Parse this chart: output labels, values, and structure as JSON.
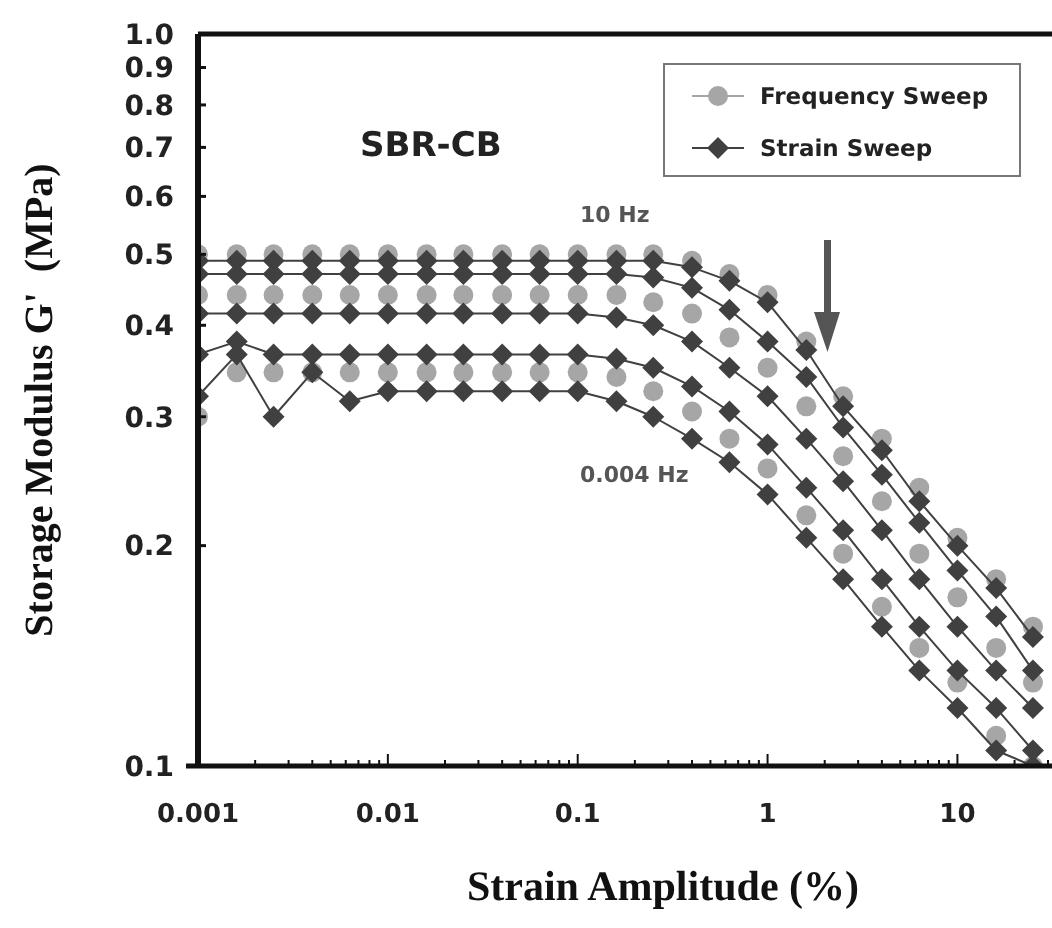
{
  "chart_data": {
    "type": "line",
    "title": "SBR-CB",
    "xlabel": "Strain Amplitude (%)",
    "ylabel": "Storage Modulus G'  (MPa)",
    "log": "xy",
    "grid": false,
    "legend": "top right",
    "xlim": [
      0.001,
      30
    ],
    "ylim": [
      0.1,
      1
    ],
    "xticks": [
      0.001,
      {
        "value": 0.002,
        "label": null
      },
      {
        "value": 0.003,
        "label": null
      },
      {
        "value": 0.004,
        "label": null
      },
      {
        "value": 0.005,
        "label": null
      },
      {
        "value": 0.006,
        "label": null
      },
      {
        "value": 0.007,
        "label": null
      },
      {
        "value": 0.008,
        "label": null
      },
      {
        "value": 0.009,
        "label": null
      },
      0.01,
      {
        "value": 0.02,
        "label": null
      },
      {
        "value": 0.03,
        "label": null
      },
      {
        "value": 0.04,
        "label": null
      },
      {
        "value": 0.05,
        "label": null
      },
      {
        "value": 0.06,
        "label": null
      },
      {
        "value": 0.07,
        "label": null
      },
      {
        "value": 0.08,
        "label": null
      },
      {
        "value": 0.09,
        "label": null
      },
      0.1,
      {
        "value": 0.2,
        "label": null
      },
      {
        "value": 0.3,
        "label": null
      },
      {
        "value": 0.4,
        "label": null
      },
      {
        "value": 0.5,
        "label": null
      },
      {
        "value": 0.6,
        "label": null
      },
      {
        "value": 0.7,
        "label": null
      },
      {
        "value": 0.8,
        "label": null
      },
      {
        "value": 0.9,
        "label": null
      },
      1,
      {
        "value": 2,
        "label": null
      },
      {
        "value": 3,
        "label": null
      },
      {
        "value": 4,
        "label": null
      },
      {
        "value": 5,
        "label": null
      },
      {
        "value": 6,
        "label": null
      },
      {
        "value": 7,
        "label": null
      },
      {
        "value": 8,
        "label": null
      },
      {
        "value": 9,
        "label": null
      },
      10,
      {
        "value": 20,
        "label": null
      },
      {
        "value": 30,
        "label": null
      }
    ],
    "yticks": [
      0.1,
      0.2,
      0.3,
      0.4,
      0.5,
      0.6,
      0.7,
      0.8,
      0.9,
      {
        "value": 1,
        "label": "1.0"
      }
    ],
    "annotations": [
      "10 Hz",
      "0.004 Hz"
    ],
    "x": [
      0.001,
      0.0016,
      0.0025,
      0.004,
      0.0063,
      0.01,
      0.016,
      0.025,
      0.04,
      0.063,
      0.1,
      0.16,
      0.25,
      0.4,
      0.63,
      1,
      1.6,
      2.5,
      4,
      6.3,
      10,
      16,
      25
    ],
    "series": [
      {
        "name": "Frequency Sweep",
        "type": "scatter",
        "marker": "circle",
        "color": "#a6a6a6",
        "x": [
          0.001,
          0.001,
          0.001,
          0.0016,
          0.0016,
          0.0016,
          0.0025,
          0.0025,
          0.0025,
          0.004,
          0.004,
          0.004,
          0.0063,
          0.0063,
          0.0063,
          0.01,
          0.01,
          0.01,
          0.016,
          0.016,
          0.016,
          0.025,
          0.025,
          0.025,
          0.04,
          0.04,
          0.04,
          0.063,
          0.063,
          0.063,
          0.1,
          0.1,
          0.1,
          0.16,
          0.16,
          0.16,
          0.25,
          0.25,
          0.25,
          0.4,
          0.4,
          0.4,
          0.63,
          0.63,
          0.63,
          1,
          1,
          1,
          1.6,
          1.6,
          1.6,
          2.5,
          2.5,
          2.5,
          4,
          4,
          4,
          6.3,
          6.3,
          6.3,
          10,
          10,
          10,
          16,
          16,
          16,
          25,
          25,
          25
        ],
        "values": [
          0.5,
          0.44,
          0.3,
          0.5,
          0.44,
          0.345,
          0.5,
          0.44,
          0.345,
          0.5,
          0.44,
          0.345,
          0.5,
          0.44,
          0.345,
          0.5,
          0.44,
          0.345,
          0.5,
          0.44,
          0.345,
          0.5,
          0.44,
          0.345,
          0.5,
          0.44,
          0.345,
          0.5,
          0.44,
          0.345,
          0.5,
          0.44,
          0.345,
          0.5,
          0.44,
          0.34,
          0.5,
          0.43,
          0.325,
          0.49,
          0.415,
          0.305,
          0.47,
          0.385,
          0.28,
          0.44,
          0.35,
          0.255,
          0.38,
          0.31,
          0.22,
          0.32,
          0.265,
          0.195,
          0.28,
          0.23,
          0.165,
          0.24,
          0.195,
          0.145,
          0.205,
          0.17,
          0.13,
          0.18,
          0.145,
          0.11,
          0.155,
          0.13,
          0.1
        ]
      },
      {
        "name": "Strain Sweep",
        "marker": "diamond",
        "color": "#404040",
        "values": [
          0.49,
          0.49,
          0.49,
          0.49,
          0.49,
          0.49,
          0.49,
          0.49,
          0.49,
          0.49,
          0.49,
          0.49,
          0.49,
          0.48,
          0.46,
          0.43,
          0.37,
          0.31,
          0.27,
          0.23,
          0.2,
          0.175,
          0.15
        ]
      },
      {
        "marker": "diamond",
        "color": "#404040",
        "values": [
          0.47,
          0.47,
          0.47,
          0.47,
          0.47,
          0.47,
          0.47,
          0.47,
          0.47,
          0.47,
          0.47,
          0.47,
          0.465,
          0.45,
          0.42,
          0.38,
          0.34,
          0.29,
          0.25,
          0.215,
          0.185,
          0.16,
          0.135
        ]
      },
      {
        "marker": "diamond",
        "color": "#404040",
        "values": [
          0.415,
          0.415,
          0.415,
          0.415,
          0.415,
          0.415,
          0.415,
          0.415,
          0.415,
          0.415,
          0.415,
          0.41,
          0.4,
          0.38,
          0.35,
          0.32,
          0.28,
          0.245,
          0.21,
          0.18,
          0.155,
          0.135,
          0.12
        ]
      },
      {
        "marker": "diamond",
        "color": "#404040",
        "values": [
          0.365,
          0.38,
          0.365,
          0.365,
          0.365,
          0.365,
          0.365,
          0.365,
          0.365,
          0.365,
          0.365,
          0.36,
          0.35,
          0.33,
          0.305,
          0.275,
          0.24,
          0.21,
          0.18,
          0.155,
          0.135,
          0.12,
          0.105
        ]
      },
      {
        "marker": "diamond",
        "color": "#404040",
        "values": [
          0.32,
          0.365,
          0.3,
          0.345,
          0.315,
          0.325,
          0.325,
          0.325,
          0.325,
          0.325,
          0.325,
          0.315,
          0.3,
          0.28,
          0.26,
          0.235,
          0.205,
          0.18,
          0.155,
          0.135,
          0.12,
          0.105,
          0.1
        ]
      }
    ]
  }
}
